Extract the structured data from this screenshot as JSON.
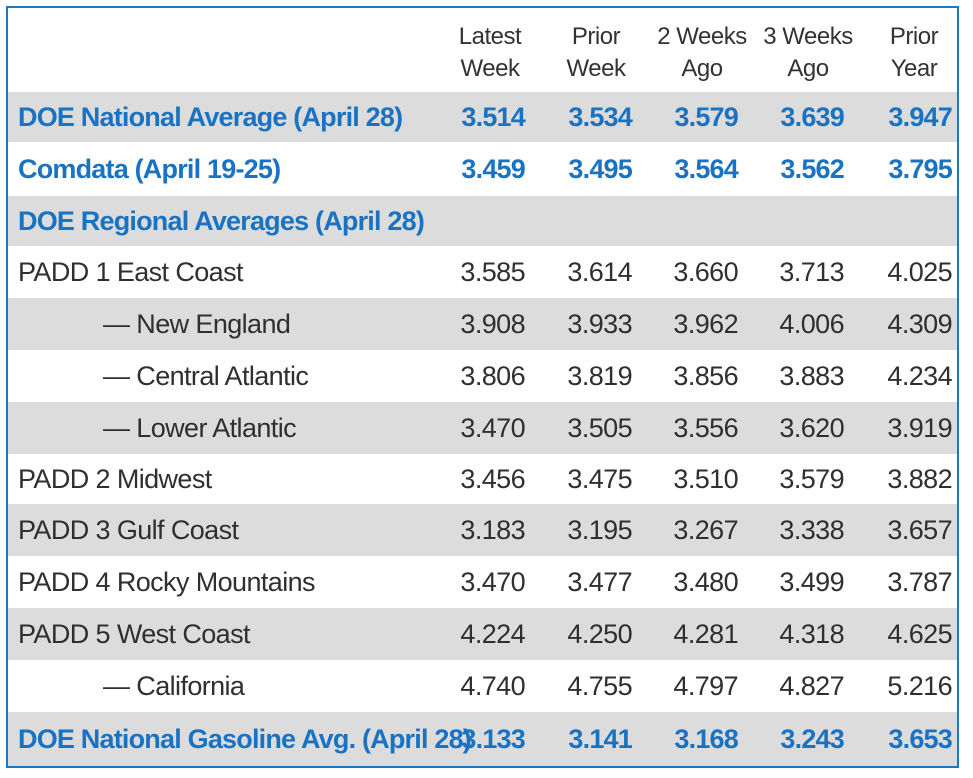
{
  "headers": [
    "Latest\nWeek",
    "Prior\nWeek",
    "2 Weeks\nAgo",
    "3 Weeks\nAgo",
    "Prior\nYear"
  ],
  "header_lines": [
    {
      "l1": "Latest",
      "l2": "Week"
    },
    {
      "l1": "Prior",
      "l2": "Week"
    },
    {
      "l1": "2 Weeks",
      "l2": "Ago"
    },
    {
      "l1": "3 Weeks",
      "l2": "Ago"
    },
    {
      "l1": "Prior",
      "l2": "Year"
    }
  ],
  "rows": [
    {
      "label": "DOE National Average (April 28)",
      "values": [
        "3.514",
        "3.534",
        "3.579",
        "3.639",
        "3.947"
      ]
    },
    {
      "label": "Comdata (April 19-25)",
      "values": [
        "3.459",
        "3.495",
        "3.564",
        "3.562",
        "3.795"
      ]
    },
    {
      "label": "DOE Regional Averages (April 28)",
      "values": []
    },
    {
      "label": "PADD 1 East Coast",
      "values": [
        "3.585",
        "3.614",
        "3.660",
        "3.713",
        "4.025"
      ]
    },
    {
      "label": "— New England",
      "values": [
        "3.908",
        "3.933",
        "3.962",
        "4.006",
        "4.309"
      ]
    },
    {
      "label": "— Central Atlantic",
      "values": [
        "3.806",
        "3.819",
        "3.856",
        "3.883",
        "4.234"
      ]
    },
    {
      "label": "— Lower Atlantic",
      "values": [
        "3.470",
        "3.505",
        "3.556",
        "3.620",
        "3.919"
      ]
    },
    {
      "label": "PADD 2 Midwest",
      "values": [
        "3.456",
        "3.475",
        "3.510",
        "3.579",
        "3.882"
      ]
    },
    {
      "label": "PADD 3 Gulf Coast",
      "values": [
        "3.183",
        "3.195",
        "3.267",
        "3.338",
        "3.657"
      ]
    },
    {
      "label": "PADD 4 Rocky Mountains",
      "values": [
        "3.470",
        "3.477",
        "3.480",
        "3.499",
        "3.787"
      ]
    },
    {
      "label": "PADD 5 West Coast",
      "values": [
        "4.224",
        "4.250",
        "4.281",
        "4.318",
        "4.625"
      ]
    },
    {
      "label": "— California",
      "values": [
        "4.740",
        "4.755",
        "4.797",
        "4.827",
        "5.216"
      ]
    },
    {
      "label": "DOE National Gasoline Avg. (April 28)",
      "values": [
        "3.133",
        "3.141",
        "3.168",
        "3.243",
        "3.653"
      ]
    }
  ],
  "colors": {
    "accent": "#1a73c2",
    "border": "#1f77bd",
    "shade": "#dcdcdc",
    "text": "#2f2f2f"
  }
}
